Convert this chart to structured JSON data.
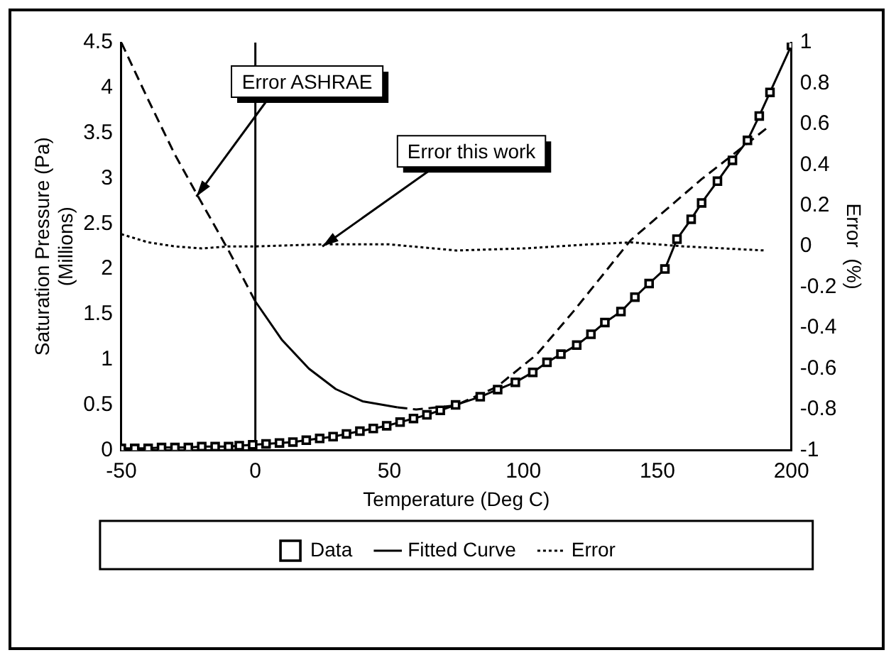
{
  "chart_data": {
    "type": "scatter",
    "xlabel": "Temperature (Deg C)",
    "ylabel": "Saturation Pressure (Pa)\n(Millions)",
    "y2label": "Error  (%)",
    "xlim": [
      -50,
      200
    ],
    "xticks": [
      -50,
      0,
      50,
      100,
      150,
      200
    ],
    "ylim": [
      0,
      4.5
    ],
    "yticks": [
      0,
      0.5,
      1,
      1.5,
      2,
      2.5,
      3,
      3.5,
      4,
      4.5
    ],
    "y2lim": [
      -1,
      1
    ],
    "y2ticks": [
      -1,
      -0.8,
      -0.6,
      -0.4,
      -0.2,
      0,
      0.2,
      0.4,
      0.6,
      0.8,
      1
    ],
    "grid": false,
    "legend": "bottom",
    "ref_lines": [
      {
        "axis": "x",
        "value": 0,
        "color": "#000000"
      }
    ],
    "annotations": [
      {
        "text": "Error ASHRAE",
        "x": -22,
        "y": 2.8
      },
      {
        "text": "Error this work",
        "x": 25,
        "y": 2.25
      }
    ],
    "series": [
      {
        "name": "Data",
        "marker": "square",
        "color": "#000000",
        "x": [
          -50,
          -45,
          -40,
          -35,
          -30,
          -25,
          -20,
          -15,
          -10,
          -6,
          -1,
          4,
          9,
          14,
          19,
          24,
          29,
          34,
          39,
          44,
          49,
          54,
          59,
          64,
          69,
          74.7,
          83.9,
          90.4,
          97,
          103.5,
          108.8,
          114,
          119.9,
          125.2,
          130.4,
          136.4,
          141.6,
          146.9,
          152.8,
          157.3,
          162.6,
          166.5,
          172.4,
          178,
          183.6,
          188,
          192,
          200
        ],
        "values": [
          0.02,
          0.02,
          0.02,
          0.03,
          0.03,
          0.03,
          0.04,
          0.04,
          0.04,
          0.05,
          0.06,
          0.07,
          0.08,
          0.09,
          0.11,
          0.13,
          0.15,
          0.18,
          0.21,
          0.24,
          0.27,
          0.31,
          0.35,
          0.39,
          0.44,
          0.5,
          0.59,
          0.67,
          0.75,
          0.86,
          0.97,
          1.06,
          1.16,
          1.28,
          1.41,
          1.53,
          1.69,
          1.84,
          2.0,
          2.33,
          2.55,
          2.73,
          2.97,
          3.2,
          3.42,
          3.69,
          3.95,
          4.47
        ]
      },
      {
        "name": "Fitted Curve",
        "type": "line",
        "line_style": "solid",
        "marker": "none",
        "color": "#000000",
        "x": [
          -50,
          -45,
          -40,
          -35,
          -30,
          -25,
          -20,
          -15,
          -10,
          -6,
          -1,
          4,
          9,
          14,
          19,
          24,
          29,
          34,
          39,
          44,
          49,
          54,
          59,
          64,
          69,
          74.7,
          83.9,
          90.4,
          97,
          103.5,
          108.8,
          114,
          119.9,
          125.2,
          130.4,
          136.4,
          141.6,
          146.9,
          152.8,
          157.3,
          162.6,
          166.5,
          172.4,
          178,
          183.6,
          188,
          192,
          200
        ],
        "values": [
          0.02,
          0.02,
          0.02,
          0.03,
          0.03,
          0.03,
          0.04,
          0.04,
          0.04,
          0.05,
          0.06,
          0.07,
          0.08,
          0.09,
          0.11,
          0.13,
          0.15,
          0.18,
          0.21,
          0.24,
          0.27,
          0.31,
          0.35,
          0.39,
          0.44,
          0.5,
          0.59,
          0.67,
          0.75,
          0.86,
          0.97,
          1.06,
          1.16,
          1.28,
          1.41,
          1.53,
          1.69,
          1.84,
          2.0,
          2.33,
          2.55,
          2.73,
          2.97,
          3.2,
          3.42,
          3.69,
          3.95,
          4.47
        ]
      },
      {
        "name": "Error",
        "type": "line",
        "line_style": "dotted",
        "marker": "none",
        "axis": "y2",
        "color": "#000000",
        "x": [
          -50,
          -40,
          -30,
          -20,
          -10,
          0,
          25,
          50,
          75,
          100,
          125,
          140,
          160,
          190
        ],
        "values": [
          0.06,
          0.02,
          0.0,
          -0.01,
          0.0,
          0.0,
          0.01,
          0.01,
          -0.02,
          -0.01,
          0.01,
          0.02,
          0.0,
          -0.02
        ]
      },
      {
        "type": "line",
        "line_style": "dashed",
        "marker": "none",
        "axis": "y2",
        "color": "#000000",
        "x": [
          -50,
          -40,
          -30,
          -22,
          -10,
          0
        ],
        "values": [
          1,
          0.72,
          0.45,
          0.26,
          -0.02,
          -0.27
        ]
      },
      {
        "type": "line",
        "line_style": "solid",
        "marker": "none",
        "axis": "y2",
        "color": "#000000",
        "x": [
          0,
          10,
          20,
          30,
          40,
          53
        ],
        "values": [
          -0.27,
          -0.46,
          -0.6,
          -0.7,
          -0.76,
          -0.79
        ]
      },
      {
        "type": "line",
        "line_style": "dashed",
        "marker": "none",
        "axis": "y2",
        "color": "#000000",
        "x": [
          53,
          60,
          74.7,
          90,
          105,
          118.6,
          140,
          166.5,
          190.8
        ],
        "values": [
          -0.79,
          -0.8,
          -0.78,
          -0.69,
          -0.53,
          -0.32,
          0.03,
          0.33,
          0.58
        ]
      }
    ]
  }
}
